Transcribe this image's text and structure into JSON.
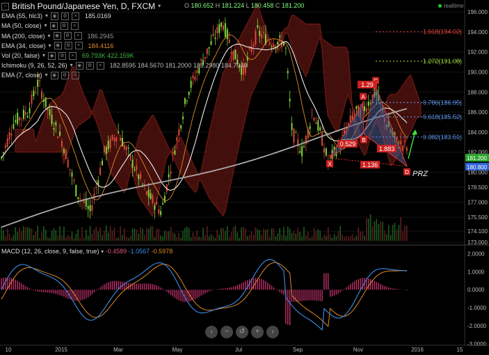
{
  "header": {
    "title": "British Pound/Japanese Yen, D, FXCM",
    "ohlc": [
      {
        "k": "O",
        "v": "180.652"
      },
      {
        "k": "H",
        "v": "181.224"
      },
      {
        "k": "L",
        "v": "180.458"
      },
      {
        "k": "C",
        "v": "181.200"
      }
    ],
    "realtime": "realtime"
  },
  "indicators": [
    {
      "name": "EMA (55, hlc3)",
      "value": "185.0169",
      "color": "#dddddd"
    },
    {
      "name": "MA (50, close)",
      "value": "",
      "color": "#dddddd"
    },
    {
      "name": "MA (200, close)",
      "value": "186.2945",
      "color": "#999999"
    },
    {
      "name": "EMA (34, close)",
      "value": "184.4116",
      "color": "#e08a2a"
    },
    {
      "name": "Vol (20, false)",
      "value": "69.793K 422.159K",
      "color": "#3fb83f"
    },
    {
      "name": "Ichimoku (9, 26, 52, 26)",
      "value": "182.8595  184.5670  181.2000  185.2980  184.7040",
      "color": "#bbbbbb"
    },
    {
      "name": "EMA (7, close)",
      "value": "",
      "color": "#dddddd"
    }
  ],
  "macd_legend": {
    "name": "MACD (12, 26, close, 9, false, true)",
    "values": [
      "-0.4589",
      "-1.0567",
      "-0.5978"
    ],
    "colors": [
      "#e0557a",
      "#3d8ee8",
      "#e08a2a"
    ]
  },
  "chart_data": {
    "type": "candlestick",
    "y_axis": {
      "min": 173,
      "max": 196.5,
      "ticks": [
        "196.000",
        "194.000",
        "192.000",
        "190.000",
        "188.000",
        "186.000",
        "184.000",
        "182.000",
        "180.000",
        "178.500",
        "177.000",
        "175.500",
        "174.100",
        "173.000"
      ]
    },
    "price_tags": [
      {
        "value": "181.200",
        "color": "#2aa52a"
      },
      {
        "value": "180.800",
        "color": "#2f63d6"
      }
    ],
    "x_axis_labels": [
      "10",
      "2015",
      "Mar",
      "May",
      "Jul",
      "Sep",
      "Nov",
      "2016",
      "15"
    ],
    "fibonacci": [
      {
        "label": "1.618(194.02)",
        "value": 194.02,
        "color": "#d9413a"
      },
      {
        "label": "1.272(191.08)",
        "value": 191.08,
        "color": "#9bd63c"
      },
      {
        "label": "0.786(186.95)",
        "value": 186.95,
        "color": "#5b8fe0"
      },
      {
        "label": "0.618(185.52)",
        "value": 185.52,
        "color": "#5b8fe0"
      },
      {
        "label": "0.382(183.51)",
        "value": 183.51,
        "color": "#5b8fe0"
      }
    ],
    "harmonic": {
      "points": [
        "X",
        "A",
        "B",
        "C",
        "D"
      ],
      "ratios": [
        "0.529",
        "1.29",
        "1.883",
        "1.136"
      ],
      "label": "PRZ"
    },
    "macd": {
      "ticks": [
        "2.0000",
        "1.0000",
        "0.0000",
        "-1.0000",
        "-2.0000",
        "-3.0000"
      ],
      "ylim": [
        -3.0,
        2.4
      ]
    }
  },
  "nav": {
    "buttons": [
      "‹",
      "−",
      "↺",
      "+",
      "›"
    ]
  }
}
